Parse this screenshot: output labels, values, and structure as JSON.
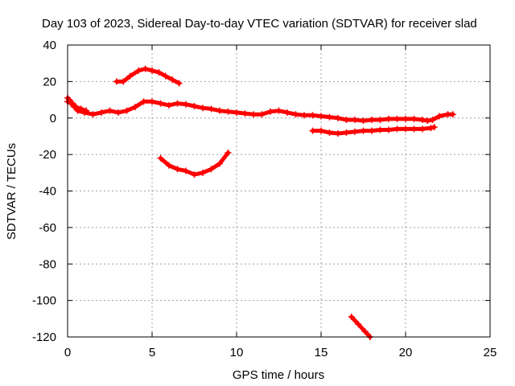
{
  "chart_data": {
    "type": "scatter",
    "title": "Day 103 of 2023, Sidereal Day-to-day VTEC variation (SDTVAR) for receiver slad",
    "xlabel": "GPS time / hours",
    "ylabel": "SDTVAR / TECUs",
    "xlim": [
      0,
      25
    ],
    "ylim": [
      -120,
      40
    ],
    "xticks": [
      0,
      5,
      10,
      15,
      20,
      25
    ],
    "yticks": [
      -120,
      -100,
      -80,
      -60,
      -40,
      -20,
      0,
      20,
      40
    ],
    "grid": true,
    "legend": "none",
    "color": "#ff0000",
    "series": [
      {
        "name": "arc-main",
        "points": [
          [
            0,
            9
          ],
          [
            0.2,
            8
          ],
          [
            0.4,
            6
          ],
          [
            0.6,
            4
          ],
          [
            1,
            3
          ],
          [
            1.5,
            2
          ],
          [
            2,
            3
          ],
          [
            2.5,
            4
          ],
          [
            3,
            3
          ],
          [
            3.5,
            4
          ],
          [
            4,
            6
          ],
          [
            4.5,
            9
          ],
          [
            5,
            9
          ],
          [
            5.5,
            8
          ],
          [
            6,
            7
          ],
          [
            6.5,
            8
          ],
          [
            7,
            7.5
          ],
          [
            7.5,
            6.5
          ],
          [
            8,
            5.5
          ],
          [
            8.5,
            5
          ],
          [
            9,
            4
          ],
          [
            9.5,
            3.5
          ],
          [
            10,
            3
          ],
          [
            10.5,
            2.5
          ],
          [
            11,
            2
          ],
          [
            11.5,
            2
          ],
          [
            12,
            3.5
          ],
          [
            12.5,
            4
          ],
          [
            13,
            3
          ],
          [
            13.5,
            2
          ],
          [
            14,
            1.5
          ],
          [
            14.5,
            1.5
          ],
          [
            15,
            1
          ],
          [
            15.5,
            0.5
          ],
          [
            16,
            0
          ],
          [
            16.5,
            -1
          ],
          [
            17,
            -1
          ],
          [
            17.5,
            -1.5
          ],
          [
            18,
            -1
          ],
          [
            18.5,
            -1
          ],
          [
            19,
            -0.5
          ],
          [
            19.5,
            -0.5
          ],
          [
            20,
            -0.5
          ],
          [
            20.5,
            -0.5
          ],
          [
            21,
            -1
          ],
          [
            21.3,
            -1.5
          ],
          [
            21.6,
            -1
          ],
          [
            22,
            1
          ],
          [
            22.5,
            2
          ],
          [
            22.8,
            2
          ]
        ]
      },
      {
        "name": "arc-start",
        "points": [
          [
            0,
            11
          ],
          [
            0.1,
            10
          ],
          [
            0.3,
            8
          ],
          [
            0.5,
            6
          ],
          [
            0.8,
            5
          ],
          [
            1.1,
            4
          ]
        ]
      },
      {
        "name": "arc-top",
        "points": [
          [
            2.9,
            20
          ],
          [
            3.3,
            20
          ],
          [
            3.7,
            23
          ],
          [
            4.2,
            26
          ],
          [
            4.6,
            27
          ],
          [
            5,
            26
          ],
          [
            5.4,
            25
          ],
          [
            5.8,
            23
          ],
          [
            6.2,
            21
          ],
          [
            6.6,
            19
          ]
        ]
      },
      {
        "name": "arc-mid-low",
        "points": [
          [
            5.5,
            -22
          ],
          [
            6,
            -26
          ],
          [
            6.5,
            -28
          ],
          [
            7,
            -29
          ],
          [
            7.5,
            -31
          ],
          [
            8,
            -30
          ],
          [
            8.5,
            -28
          ],
          [
            9,
            -25
          ],
          [
            9.5,
            -19
          ]
        ]
      },
      {
        "name": "arc-right-low",
        "points": [
          [
            14.5,
            -7
          ],
          [
            15,
            -7
          ],
          [
            15.5,
            -8
          ],
          [
            16,
            -8.5
          ],
          [
            16.5,
            -8
          ],
          [
            17,
            -7.5
          ],
          [
            17.5,
            -7
          ],
          [
            18,
            -7
          ],
          [
            18.5,
            -6.5
          ],
          [
            19,
            -6.5
          ],
          [
            19.5,
            -6
          ],
          [
            20,
            -6
          ],
          [
            20.5,
            -6
          ],
          [
            21,
            -6
          ],
          [
            21.5,
            -5.5
          ],
          [
            21.7,
            -5
          ]
        ]
      },
      {
        "name": "arc-bottom",
        "points": [
          [
            16.8,
            -109
          ],
          [
            17.2,
            -113
          ],
          [
            17.6,
            -117
          ],
          [
            17.9,
            -120
          ]
        ]
      }
    ]
  }
}
